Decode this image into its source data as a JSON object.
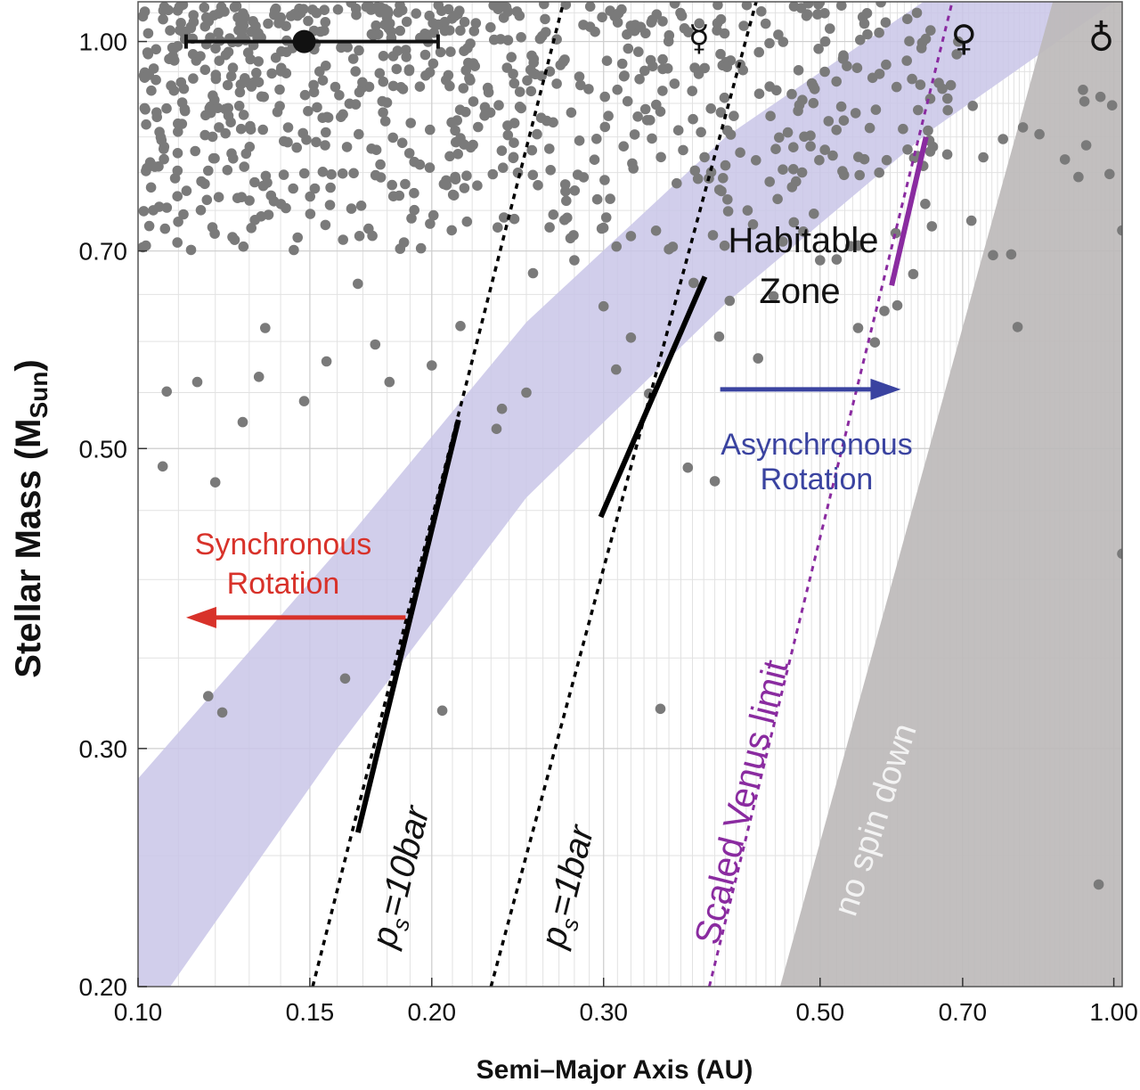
{
  "chart_data": {
    "type": "scatter",
    "title": "",
    "xlabel": "Semi–Major Axis (AU)",
    "ylabel": "Stellar Mass (M",
    "ylabel_sub": "Sun",
    "ylabel_close": ")",
    "xscale": "log",
    "yscale": "log",
    "xlim": [
      0.1,
      1.02
    ],
    "ylim": [
      0.2,
      1.07
    ],
    "grid": true,
    "legend": "none",
    "xticks": [
      0.1,
      0.15,
      0.2,
      0.3,
      0.5,
      0.7,
      1.0
    ],
    "xtick_labels": [
      "0.10",
      "0.15",
      "0.20",
      "0.30",
      "0.50",
      "0.70",
      "1.00"
    ],
    "yticks": [
      0.2,
      0.3,
      0.5,
      0.7,
      1.0
    ],
    "ytick_labels": [
      "0.20",
      "0.30",
      "0.50",
      "0.70",
      "1.00"
    ],
    "colors": {
      "points": "#7a7a7a",
      "habitable_zone": "#c9c5e8",
      "no_spin_down": "#bdbaba",
      "venus_limit": "#8a2ba0",
      "synchronous": "#d8322a",
      "asynchronous": "#3a43a0",
      "pressure_lines": "#000000"
    },
    "habitable_zone": {
      "label_line1": "Habitable",
      "label_line2": "Zone",
      "inner_edge": [
        [
          0.1,
          0.185
        ],
        [
          0.16,
          0.3
        ],
        [
          0.25,
          0.46
        ],
        [
          0.4,
          0.64
        ],
        [
          0.65,
          0.86
        ],
        [
          1.02,
          1.08
        ]
      ],
      "outer_edge": [
        [
          0.1,
          0.285
        ],
        [
          0.16,
          0.42
        ],
        [
          0.25,
          0.62
        ],
        [
          0.4,
          0.85
        ],
        [
          0.65,
          1.08
        ],
        [
          1.02,
          1.35
        ]
      ]
    },
    "pressure_lines": [
      {
        "label_p": "p",
        "label_sub": "s",
        "label_rest": "=10bar",
        "dotted": [
          [
            0.151,
            0.2
          ],
          [
            0.273,
            1.07
          ]
        ],
        "solid": [
          [
            0.168,
            0.26
          ],
          [
            0.213,
            0.525
          ]
        ]
      },
      {
        "label_p": "p",
        "label_sub": "s",
        "label_rest": "=1bar",
        "dotted": [
          [
            0.23,
            0.2
          ],
          [
            0.43,
            1.07
          ]
        ],
        "solid": [
          [
            0.298,
            0.445
          ],
          [
            0.381,
            0.67
          ]
        ]
      }
    ],
    "venus_limit": {
      "label": "Scaled Venus limit",
      "dotted": [
        [
          0.385,
          0.2
        ],
        [
          0.683,
          1.07
        ]
      ],
      "solid": [
        [
          0.592,
          0.66
        ],
        [
          0.642,
          0.85
        ]
      ]
    },
    "no_spin_down": {
      "label": "no spin down",
      "polygon": [
        [
          0.455,
          0.2
        ],
        [
          0.866,
          1.07
        ],
        [
          1.02,
          1.07
        ],
        [
          1.02,
          0.2
        ]
      ]
    },
    "synchronous": {
      "line1": "Synchronous",
      "line2": "Rotation",
      "arrow_from": 0.188,
      "arrow_to": 0.112,
      "arrow_y": 0.375
    },
    "asynchronous": {
      "line1": "Asynchronous",
      "line2": "Rotation",
      "arrow_from": 0.395,
      "arrow_to": 0.605,
      "arrow_y": 0.553
    },
    "solar_marker": {
      "x": 0.148,
      "y": 1.0,
      "xerr_low": 0.112,
      "xerr_high": 0.203
    },
    "planet_symbols": [
      {
        "name": "Mercury",
        "glyph": "☿",
        "x": 0.387,
        "y": 1.0
      },
      {
        "name": "Venus",
        "glyph": "♀",
        "x": 0.723,
        "y": 1.0
      },
      {
        "name": "Earth",
        "glyph": "♁",
        "x": 1.0,
        "y": 1.0
      }
    ],
    "points": [
      [
        0.118,
        0.328
      ],
      [
        0.122,
        0.319
      ],
      [
        0.163,
        0.338
      ],
      [
        0.205,
        0.32
      ],
      [
        0.343,
        0.321
      ],
      [
        0.106,
        0.485
      ],
      [
        0.12,
        0.472
      ],
      [
        0.128,
        0.523
      ],
      [
        0.236,
        0.535
      ],
      [
        0.233,
        0.517
      ],
      [
        0.25,
        0.55
      ],
      [
        0.334,
        0.549
      ],
      [
        0.366,
        0.484
      ],
      [
        0.39,
        0.473
      ],
      [
        0.309,
        0.572
      ],
      [
        0.32,
        0.604
      ],
      [
        0.371,
        0.663
      ],
      [
        0.404,
        0.643
      ],
      [
        0.448,
        0.648
      ],
      [
        0.394,
        0.605
      ],
      [
        0.432,
        0.583
      ],
      [
        0.547,
        0.614
      ],
      [
        0.569,
        0.599
      ],
      [
        0.582,
        0.632
      ],
      [
        0.6,
        0.638
      ],
      [
        0.623,
        0.673
      ],
      [
        0.651,
        0.73
      ],
      [
        0.638,
        0.809
      ],
      [
        0.675,
        0.825
      ],
      [
        0.735,
        0.821
      ],
      [
        0.77,
        0.847
      ],
      [
        0.807,
        0.864
      ],
      [
        0.839,
        0.854
      ],
      [
        0.752,
        0.695
      ],
      [
        0.785,
        0.696
      ],
      [
        0.797,
        0.615
      ],
      [
        0.891,
        0.818
      ],
      [
        0.92,
        0.794
      ],
      [
        0.937,
        0.838
      ],
      [
        0.99,
        0.798
      ],
      [
        0.933,
        0.903
      ],
      [
        0.93,
        0.921
      ],
      [
        0.969,
        0.91
      ],
      [
        0.996,
        0.897
      ],
      [
        1.02,
        0.725
      ],
      [
        1.02,
        0.418
      ],
      [
        0.965,
        0.238
      ],
      [
        0.107,
        0.551
      ],
      [
        0.115,
        0.56
      ],
      [
        0.133,
        0.565
      ],
      [
        0.135,
        0.614
      ],
      [
        0.148,
        0.542
      ],
      [
        0.156,
        0.58
      ],
      [
        0.168,
        0.662
      ],
      [
        0.175,
        0.597
      ],
      [
        0.181,
        0.56
      ],
      [
        0.2,
        0.576
      ],
      [
        0.214,
        0.616
      ],
      [
        0.254,
        0.674
      ],
      [
        0.28,
        0.689
      ],
      [
        0.3,
        0.637
      ],
      [
        0.32,
        0.718
      ],
      [
        0.35,
        0.702
      ],
      [
        0.5,
        0.689
      ],
      [
        0.47,
        0.735
      ],
      [
        0.52,
        0.69
      ]
    ],
    "points_dense": {
      "region": "upper-left cluster, x 0.10 to 0.72 AU, y 0.70 to 1.07 Msun",
      "count": 760
    }
  }
}
